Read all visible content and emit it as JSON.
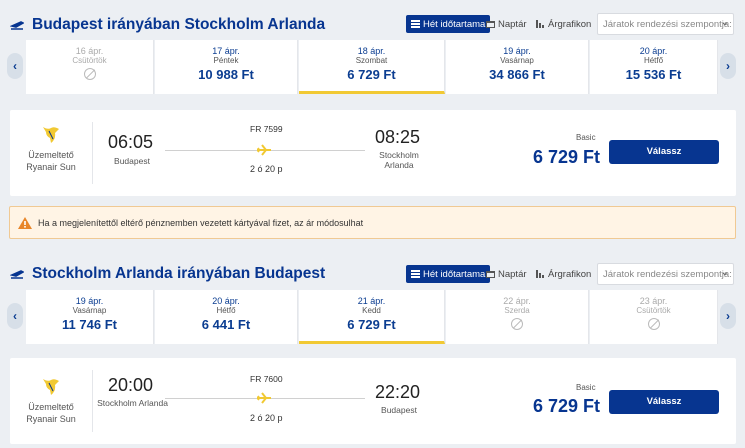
{
  "toolbar": {
    "week_view": "Hét időtartama",
    "calendar": "Naptár",
    "price_chart": "Árgrafikon",
    "sort_placeholder": "Járatok rendezési szempontja:"
  },
  "outbound": {
    "title": "Budapest irányában Stockholm Arlanda",
    "dates": [
      {
        "date": "16 ápr.",
        "day": "Csütörtök",
        "price": "",
        "disabled": true
      },
      {
        "date": "17 ápr.",
        "day": "Péntek",
        "price": "10 988 Ft",
        "disabled": false
      },
      {
        "date": "18 ápr.",
        "day": "Szombat",
        "price": "6 729 Ft",
        "disabled": false,
        "selected": true
      },
      {
        "date": "19 ápr.",
        "day": "Vasárnap",
        "price": "34 866 Ft",
        "disabled": false
      },
      {
        "date": "20 ápr.",
        "day": "Hétfő",
        "price": "15 536 Ft",
        "disabled": false
      }
    ],
    "flight": {
      "operator_label": "Üzemeltető",
      "operator": "Ryanair Sun",
      "depart_time": "06:05",
      "depart_city": "Budapest",
      "flight_no": "FR 7599",
      "duration": "2 ó 20 p",
      "arrive_time": "08:25",
      "arrive_city": "Stockholm Arlanda",
      "fare_name": "Basic",
      "price": "6 729 Ft",
      "select_label": "Válassz"
    }
  },
  "warning": {
    "text": "Ha a megjelenítettől eltérő pénznemben vezetett kártyával fizet, az ár módosulhat"
  },
  "inbound": {
    "title": "Stockholm Arlanda irányában Budapest",
    "dates": [
      {
        "date": "19 ápr.",
        "day": "Vasárnap",
        "price": "11 746 Ft",
        "disabled": false
      },
      {
        "date": "20 ápr.",
        "day": "Hétfő",
        "price": "6 441 Ft",
        "disabled": false
      },
      {
        "date": "21 ápr.",
        "day": "Kedd",
        "price": "6 729 Ft",
        "disabled": false,
        "selected": true
      },
      {
        "date": "22 ápr.",
        "day": "Szerda",
        "price": "",
        "disabled": true
      },
      {
        "date": "23 ápr.",
        "day": "Csütörtök",
        "price": "",
        "disabled": true
      }
    ],
    "flight": {
      "operator_label": "Üzemeltető",
      "operator": "Ryanair Sun",
      "depart_time": "20:00",
      "depart_city": "Stockholm Arlanda",
      "flight_no": "FR 7600",
      "duration": "2 ó 20 p",
      "arrive_time": "22:20",
      "arrive_city": "Budapest",
      "fare_name": "Basic",
      "price": "6 729 Ft",
      "select_label": "Válassz"
    }
  },
  "colors": {
    "brand": "#073590",
    "accent": "#f1c933",
    "warning_bg": "#fff4e5"
  }
}
